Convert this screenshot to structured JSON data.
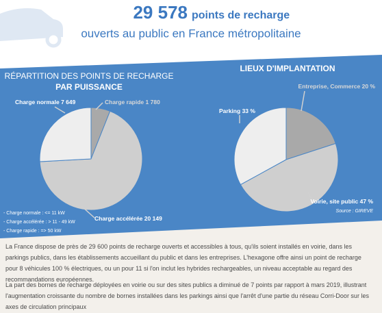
{
  "header": {
    "number": "29 578",
    "title_rest": "points de recharge",
    "subtitle": "ouverts au public en France métropolitaine"
  },
  "chart_data": [
    {
      "type": "pie",
      "title": "RÉPARTITION DES POINTS DE RECHARGE",
      "subtitle": "PAR PUISSANCE",
      "categories": [
        "Charge rapide",
        "Charge accélérée",
        "Charge normale"
      ],
      "values": [
        1780,
        20149,
        7649
      ],
      "value_labels": [
        "1 780",
        "20 149",
        "7 649"
      ],
      "colors": [
        "#a9a9a9",
        "#cfcfcf",
        "#eeeeee"
      ]
    },
    {
      "type": "pie",
      "title": "LIEUX D'IMPLANTATION",
      "categories": [
        "Entreprise, Commerce",
        "Voirie, site public",
        "Parking"
      ],
      "values": [
        20,
        47,
        33
      ],
      "value_labels": [
        "20 %",
        "47 %",
        "33 %"
      ],
      "colors": [
        "#a9a9a9",
        "#cfcfcf",
        "#eeeeee"
      ]
    }
  ],
  "legend_notes": [
    "- Charge normale : <= 11 kW",
    "- Charge accélérée : > 11 - 49 kW",
    "- Charge rapide : => 50 kW"
  ],
  "source": "Source : GIREVE",
  "paragraphs": [
    "La France dispose de près de 29 600 points de recharge ouverts et accessibles à tous, qu'ils soient installés en voirie, dans les parkings publics, dans les établissements accueillant du public et dans les entreprises. L'hexagone offre ainsi un point de recharge pour 8 véhicules 100 % électriques, ou un pour 11 si l'on inclut les hybrides rechargeables, un niveau acceptable au regard des recommandations européennes.",
    "La part des bornes de recharge déployées en voirie ou sur des sites publics a diminué de 7 points par rapport à mars 2019, illustrant l'augmentation croissante du nombre de bornes installées dans les parkings ainsi que l'arrêt d'une partie du réseau Corri-Door sur les axes de circulation principaux"
  ]
}
